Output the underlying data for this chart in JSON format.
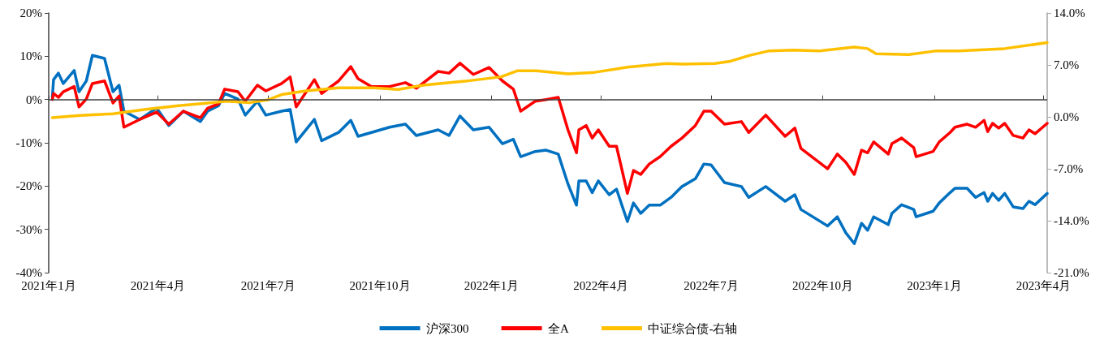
{
  "chart_data": {
    "type": "line",
    "ref_lines": [
      {
        "axis": "y",
        "value": 0,
        "color": "#404040",
        "line_style": "solid"
      }
    ],
    "legend": "bottom",
    "grid": false,
    "marker": "none",
    "line_style": "solid",
    "xlim": [
      "2021-01-01",
      "2023-04-04"
    ],
    "xticks": [
      {
        "value": "2021-01-01",
        "label": "2021年1月"
      },
      {
        "value": "2021-04-01",
        "label": "2021年4月"
      },
      {
        "value": "2021-07-01",
        "label": "2021年7月"
      },
      {
        "value": "2021-10-01",
        "label": "2021年10月"
      },
      {
        "value": "2022-01-01",
        "label": "2022年1月"
      },
      {
        "value": "2022-04-01",
        "label": "2022年4月"
      },
      {
        "value": "2022-07-01",
        "label": "2022年7月"
      },
      {
        "value": "2022-10-01",
        "label": "2022年10月"
      },
      {
        "value": "2023-01-01",
        "label": "2023年1月"
      },
      {
        "value": "2023-04-01",
        "label": "2023年4月"
      }
    ],
    "ylim": [
      -40,
      20
    ],
    "yticks": [
      {
        "value": -40,
        "label": "-40%"
      },
      {
        "value": -30,
        "label": "-30%"
      },
      {
        "value": -20,
        "label": "-20%"
      },
      {
        "value": -10,
        "label": "-10%"
      },
      {
        "value": 0,
        "label": "0%"
      },
      {
        "value": 10,
        "label": "10%"
      },
      {
        "value": 20,
        "label": "20%"
      }
    ],
    "y2lim": [
      -21,
      14
    ],
    "y2ticks": [
      {
        "value": -21,
        "label": "-21.0%"
      },
      {
        "value": -14,
        "label": "-14.0%"
      },
      {
        "value": -7,
        "label": "-7.0%"
      },
      {
        "value": 0,
        "label": "0.0%"
      },
      {
        "value": 7,
        "label": "7.0%"
      },
      {
        "value": 14,
        "label": "14.0%"
      }
    ],
    "x": [
      "2021-01-04",
      "2021-01-05",
      "2021-01-09",
      "2021-01-13",
      "2021-01-22",
      "2021-01-26",
      "2021-02-01",
      "2021-02-06",
      "2021-02-16",
      "2021-02-23",
      "2021-02-28",
      "2021-03-04",
      "2021-03-17",
      "2021-03-31",
      "2021-04-10",
      "2021-04-22",
      "2021-05-06",
      "2021-05-12",
      "2021-05-21",
      "2021-05-26",
      "2021-06-06",
      "2021-06-12",
      "2021-06-22",
      "2021-06-29",
      "2021-07-12",
      "2021-07-19",
      "2021-07-24",
      "2021-08-08",
      "2021-08-14",
      "2021-08-28",
      "2021-09-07",
      "2021-09-13",
      "2021-09-24",
      "2021-10-09",
      "2021-10-22",
      "2021-10-31",
      "2021-11-18",
      "2021-11-27",
      "2021-12-06",
      "2021-12-17",
      "2021-12-30",
      "2022-01-10",
      "2022-01-19",
      "2022-01-25",
      "2022-02-06",
      "2022-02-15",
      "2022-02-25",
      "2022-03-05",
      "2022-03-12",
      "2022-03-14",
      "2022-03-20",
      "2022-03-25",
      "2022-03-30",
      "2022-04-08",
      "2022-04-14",
      "2022-04-23",
      "2022-04-28",
      "2022-05-04",
      "2022-05-11",
      "2022-05-20",
      "2022-05-29",
      "2022-06-07",
      "2022-06-18",
      "2022-06-25",
      "2022-07-01",
      "2022-07-12",
      "2022-07-26",
      "2022-08-01",
      "2022-08-15",
      "2022-08-31",
      "2022-09-08",
      "2022-09-13",
      "2022-10-05",
      "2022-10-13",
      "2022-10-20",
      "2022-10-27",
      "2022-11-02",
      "2022-11-07",
      "2022-11-12",
      "2022-11-24",
      "2022-11-27",
      "2022-12-05",
      "2022-12-15",
      "2022-12-17",
      "2022-12-31",
      "2023-01-05",
      "2023-01-14",
      "2023-01-18",
      "2023-01-28",
      "2023-02-04",
      "2023-02-11",
      "2023-02-14",
      "2023-02-18",
      "2023-02-23",
      "2023-02-28",
      "2023-03-07",
      "2023-03-15",
      "2023-03-20",
      "2023-03-25",
      "2023-04-04"
    ],
    "series": [
      {
        "name": "沪深300",
        "color": "#0070c0",
        "values": [
          0.5,
          4.6,
          6.1,
          3.7,
          6.7,
          1.8,
          4.3,
          10.2,
          9.5,
          1.8,
          3.3,
          -2.7,
          -4.6,
          -2,
          -6,
          -2.7,
          -5.1,
          -2.7,
          -1.4,
          1.4,
          0.1,
          -3.6,
          -0.4,
          -3.6,
          -2.7,
          -2.3,
          -9.8,
          -4.6,
          -9.5,
          -7.6,
          -4.8,
          -8.5,
          -7.6,
          -6.4,
          -5.7,
          -8.3,
          -7,
          -8.3,
          -3.8,
          -7,
          -6.4,
          -10.2,
          -9.2,
          -13.2,
          -12,
          -11.7,
          -12.6,
          -19.5,
          -24.4,
          -18.8,
          -18.8,
          -21.5,
          -18.8,
          -22,
          -20.7,
          -28.2,
          -23.9,
          -26.3,
          -24.4,
          -24.4,
          -22.6,
          -20.1,
          -18.3,
          -14.9,
          -15.1,
          -19.2,
          -20.1,
          -22.6,
          -20.1,
          -23.5,
          -22,
          -25.4,
          -29.2,
          -27.1,
          -30.8,
          -33.3,
          -28.6,
          -30.2,
          -27.1,
          -28.9,
          -26.3,
          -24.3,
          -25.4,
          -27.1,
          -25.8,
          -23.9,
          -21.5,
          -20.5,
          -20.5,
          -22.6,
          -21.5,
          -23.5,
          -21.7,
          -23.3,
          -21.7,
          -24.8,
          -25.2,
          -23.5,
          -24.3,
          -21.7
        ]
      },
      {
        "name": "全A",
        "color": "#ff0000",
        "values": [
          0,
          1.4,
          0.5,
          1.8,
          3,
          -1.7,
          0.1,
          3.7,
          4.3,
          -0.8,
          0.8,
          -6.4,
          -4.6,
          -2.9,
          -5.7,
          -2.7,
          -4.2,
          -2,
          -1,
          2.4,
          1.8,
          -0.4,
          3.3,
          2,
          3.7,
          5.2,
          -1.7,
          4.6,
          1.4,
          4.3,
          7.6,
          4.8,
          3,
          3,
          3.9,
          2.6,
          6.5,
          6.1,
          8.4,
          5.8,
          7.4,
          4.3,
          2.4,
          -2.7,
          -0.4,
          0,
          0.5,
          -7,
          -12.3,
          -7,
          -6,
          -8.9,
          -7,
          -10.8,
          -10.8,
          -21.7,
          -16.4,
          -17.3,
          -14.9,
          -13.2,
          -10.8,
          -8.9,
          -6,
          -2.7,
          -2.7,
          -5.7,
          -5.1,
          -7.6,
          -3.6,
          -8.5,
          -6.6,
          -11.3,
          -16,
          -12.6,
          -14.5,
          -17.3,
          -11.7,
          -12.3,
          -9.8,
          -12.6,
          -10.2,
          -8.9,
          -11.1,
          -13.2,
          -12,
          -9.8,
          -7.6,
          -6.4,
          -5.7,
          -6.4,
          -4.8,
          -7.4,
          -5.5,
          -6.6,
          -5.5,
          -8.3,
          -8.9,
          -7,
          -7.9,
          -5.5
        ]
      },
      {
        "name": "中证综合债-右轴",
        "color": "#ffc000",
        "axis": "y2",
        "x": [
          "2021-01-04",
          "2021-01-27",
          "2021-02-23",
          "2021-03-22",
          "2021-04-18",
          "2021-05-15",
          "2021-05-28",
          "2021-06-15",
          "2021-07-01",
          "2021-07-12",
          "2021-08-01",
          "2021-08-28",
          "2021-09-26",
          "2021-10-16",
          "2021-11-07",
          "2021-12-10",
          "2022-01-09",
          "2022-01-22",
          "2022-02-07",
          "2022-03-05",
          "2022-03-27",
          "2022-04-23",
          "2022-05-25",
          "2022-06-07",
          "2022-07-04",
          "2022-07-17",
          "2022-08-02",
          "2022-08-18",
          "2022-09-07",
          "2022-09-29",
          "2022-10-27",
          "2022-11-07",
          "2022-11-14",
          "2022-12-11",
          "2023-01-03",
          "2023-01-21",
          "2023-02-28",
          "2023-04-04"
        ],
        "values": [
          -0.1,
          0.2,
          0.4,
          1.0,
          1.5,
          1.9,
          2.1,
          1.9,
          2.3,
          3.0,
          3.5,
          3.9,
          3.9,
          3.7,
          4.3,
          4.8,
          5.4,
          6.2,
          6.2,
          5.8,
          6.0,
          6.7,
          7.2,
          7.1,
          7.2,
          7.5,
          8.3,
          8.9,
          9.0,
          8.9,
          9.4,
          9.2,
          8.5,
          8.4,
          8.9,
          8.9,
          9.2,
          10.0
        ]
      }
    ]
  }
}
